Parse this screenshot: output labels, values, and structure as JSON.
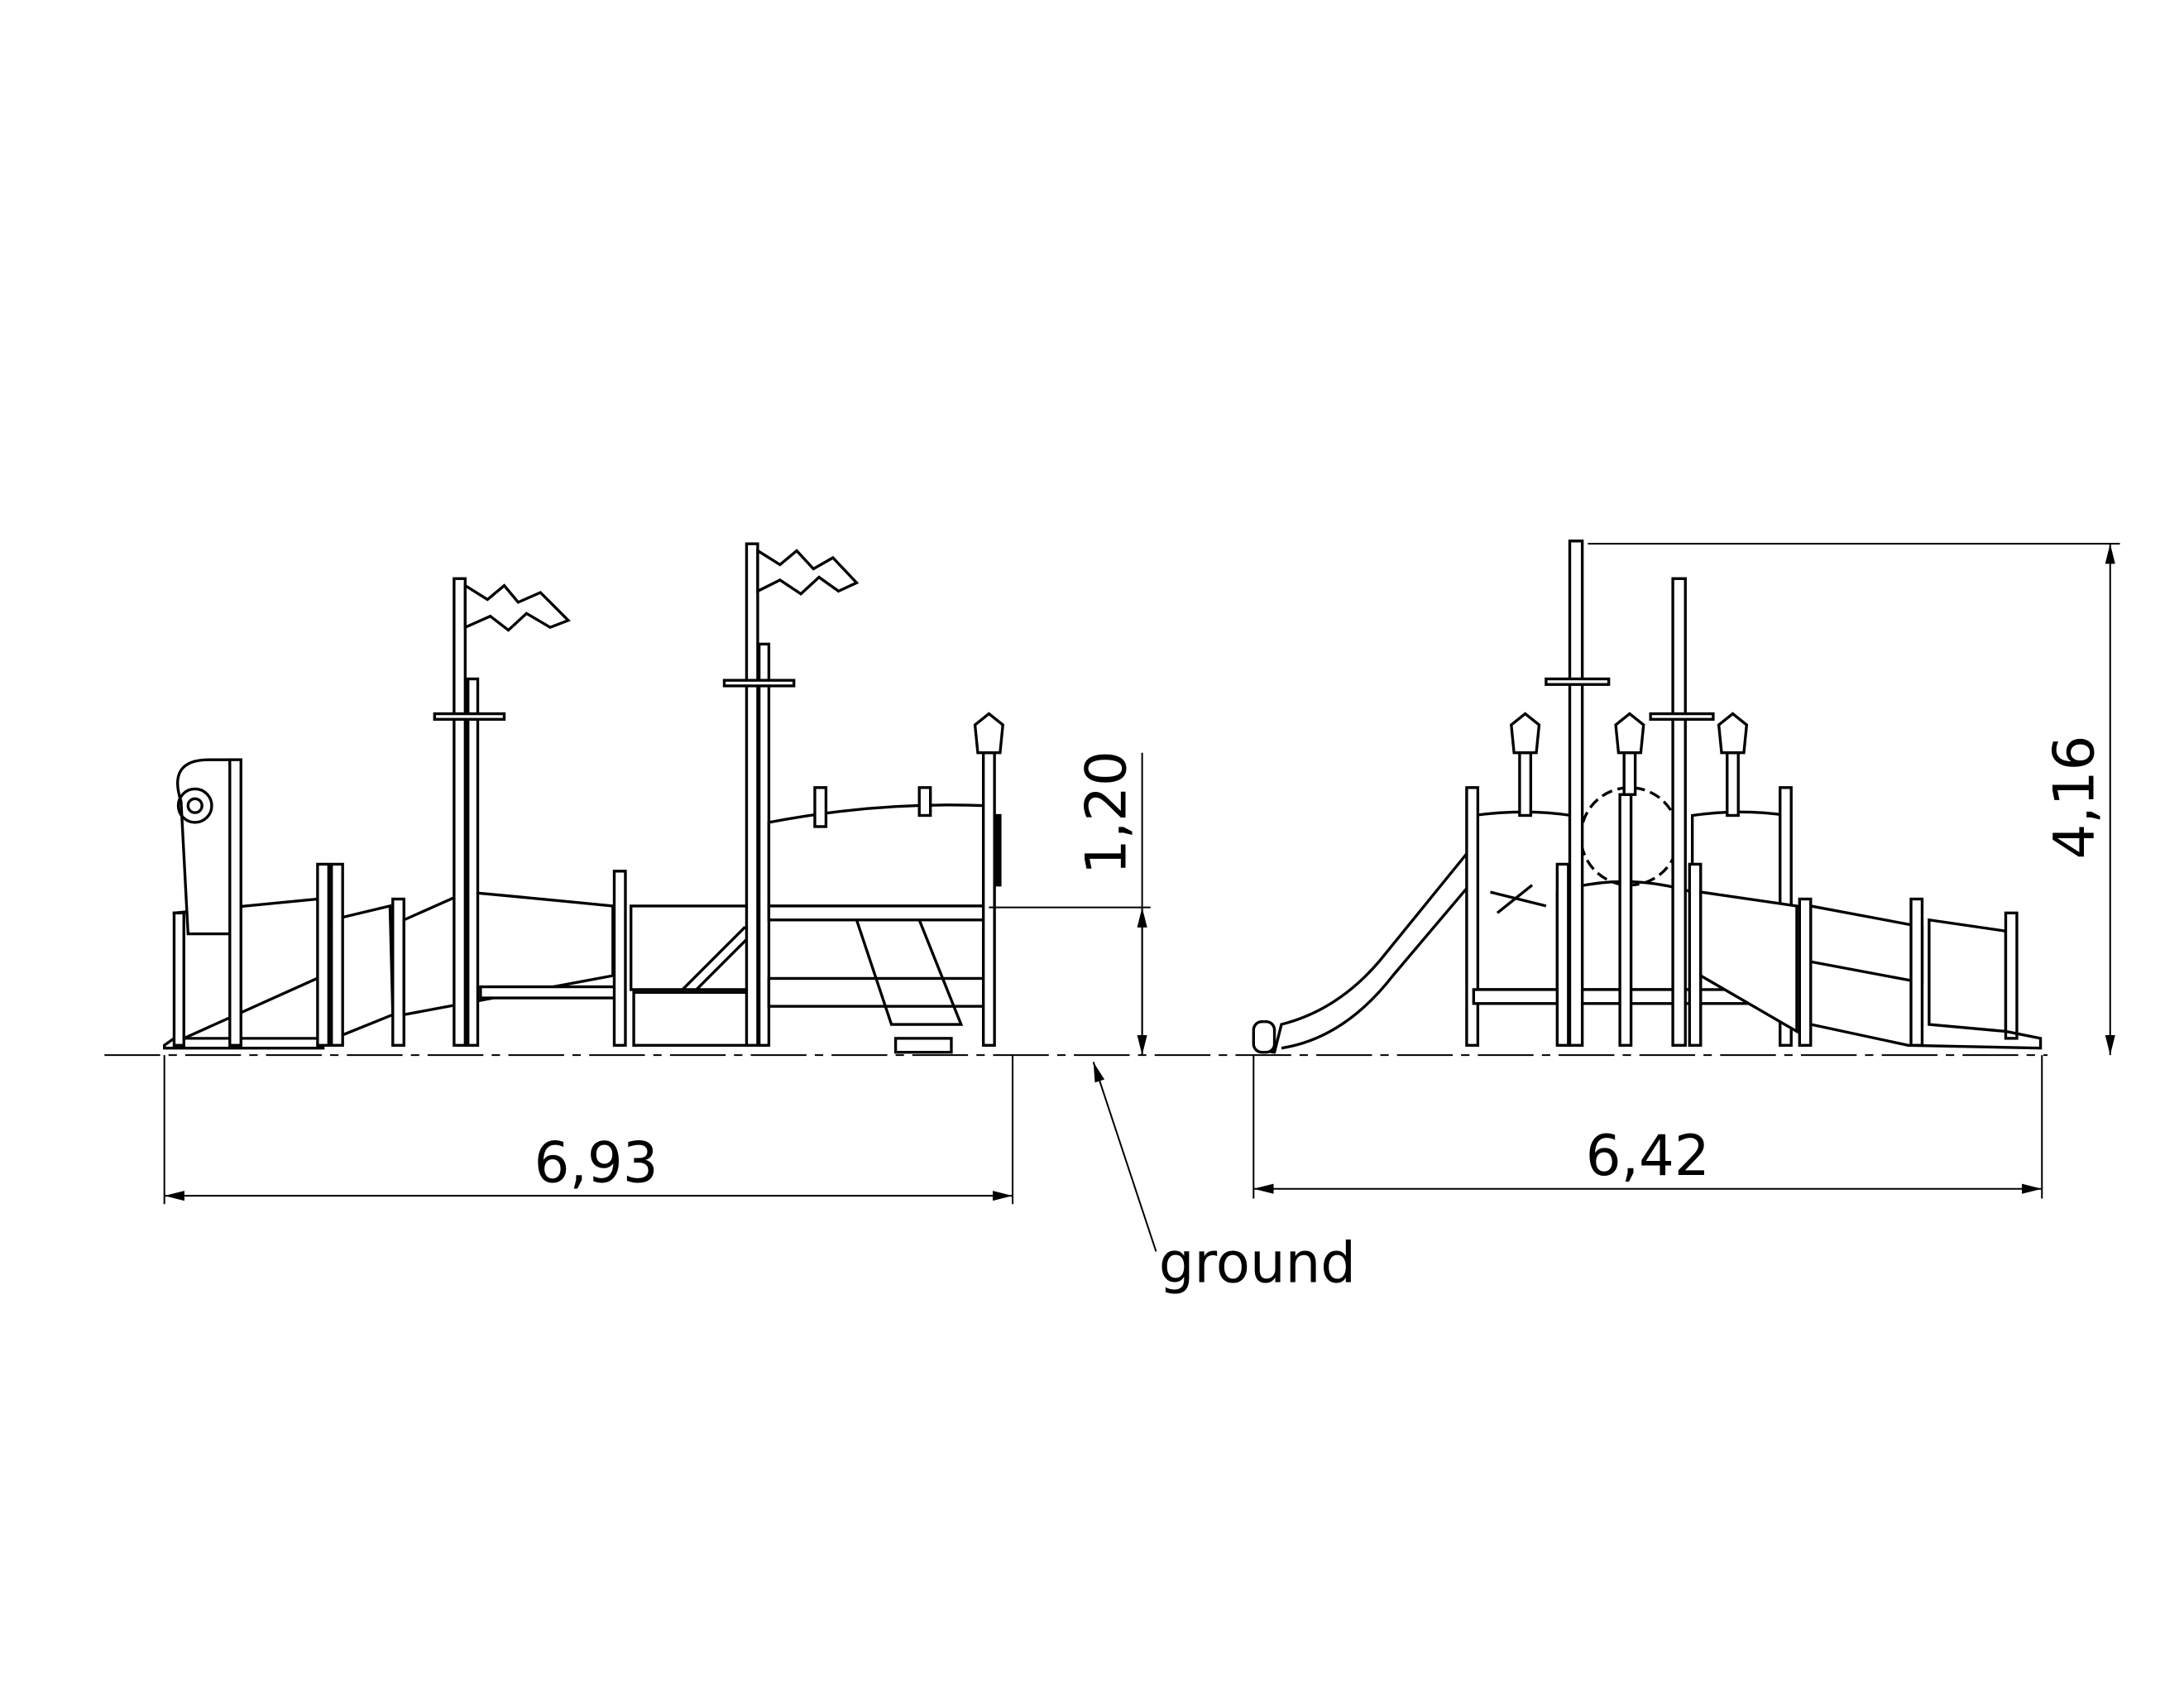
{
  "dimensions": {
    "left_width": "6,93",
    "right_width": "6,42",
    "deck_height": "1,20",
    "total_height": "4,16"
  },
  "callout": "ground"
}
